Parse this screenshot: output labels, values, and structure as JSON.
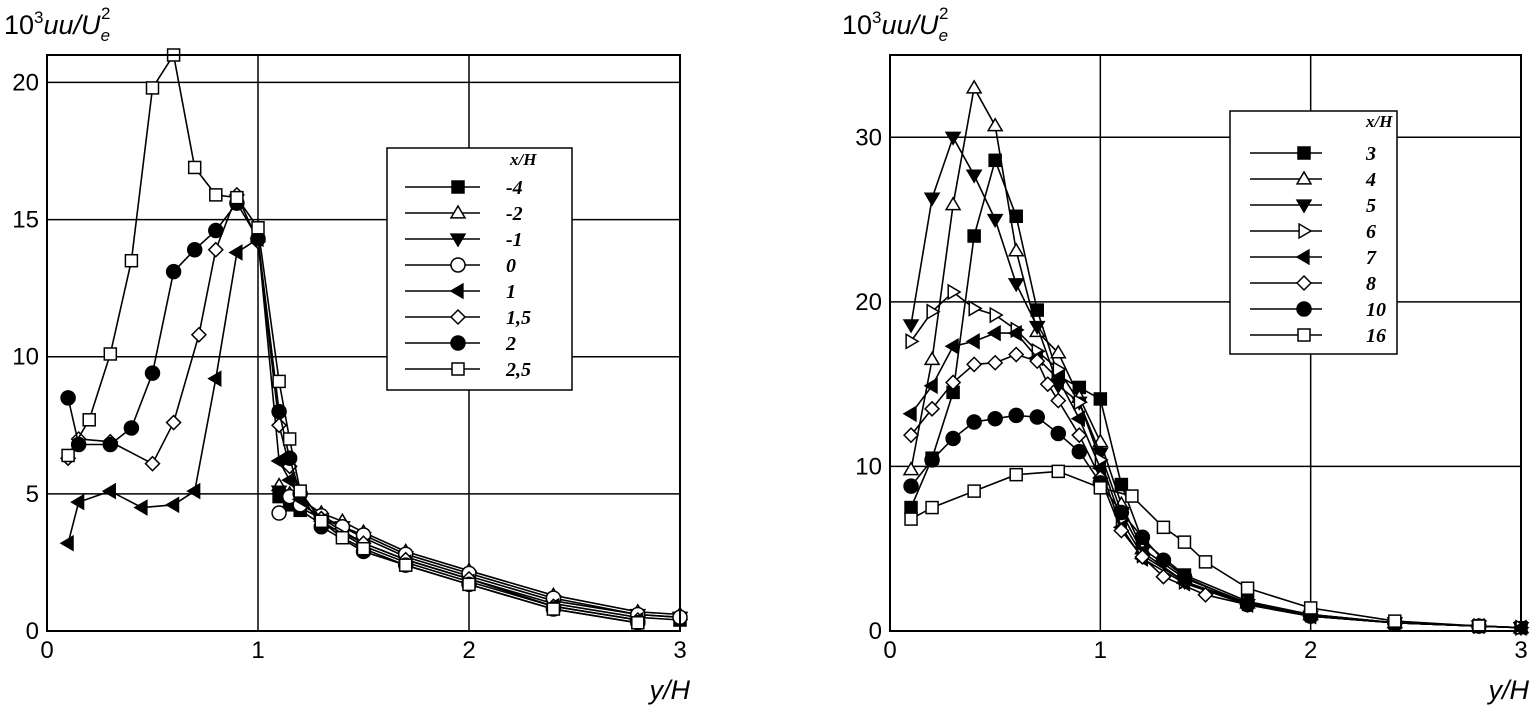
{
  "chart_data": [
    {
      "type": "line",
      "ylabel_text": "10",
      "ylabel_exp": "3",
      "ylabel_main": "uu/U",
      "ylabel_sub": "e",
      "ylabel_sup": "2",
      "xlabel": "y/H",
      "xlim": [
        0,
        3
      ],
      "ylim": [
        0,
        21
      ],
      "xticks": [
        "0",
        "1",
        "2",
        "3"
      ],
      "yticks": [
        "0",
        "5",
        "10",
        "15",
        "20"
      ],
      "ytick_values": [
        0,
        5,
        10,
        15,
        20
      ],
      "grid": true,
      "legend_title": "x/H",
      "legend_position": "center-right",
      "series": [
        {
          "name": "-4",
          "marker": "square-filled",
          "x": [
            1.1,
            1.15,
            1.2,
            1.3,
            1.4,
            1.5,
            1.7,
            2.0,
            2.4,
            2.8,
            3.0
          ],
          "y": [
            4.9,
            4.6,
            4.4,
            3.9,
            3.6,
            3.2,
            2.6,
            1.9,
            1.0,
            0.5,
            0.4
          ]
        },
        {
          "name": "-2",
          "marker": "triangle-up-open",
          "x": [
            1.1,
            1.15,
            1.2,
            1.3,
            1.4,
            1.5,
            1.7,
            2.0,
            2.4,
            2.8,
            3.0
          ],
          "y": [
            5.3,
            5.0,
            4.8,
            4.3,
            4.0,
            3.6,
            2.9,
            2.2,
            1.3,
            0.7,
            0.6
          ]
        },
        {
          "name": "-1",
          "marker": "triangle-down-filled",
          "x": [
            1.1,
            1.15,
            1.2,
            1.3,
            1.4,
            1.5,
            1.7,
            2.0,
            2.4,
            2.8,
            3.0
          ],
          "y": [
            5.1,
            4.8,
            4.5,
            4.1,
            3.8,
            3.4,
            2.7,
            2.0,
            1.1,
            0.6,
            0.5
          ]
        },
        {
          "name": "0",
          "marker": "circle-open",
          "x": [
            1.1,
            1.15,
            1.2,
            1.3,
            1.4,
            1.5,
            1.7,
            2.0,
            2.4,
            2.8,
            3.0
          ],
          "y": [
            4.3,
            4.9,
            4.6,
            4.2,
            3.8,
            3.5,
            2.8,
            2.1,
            1.2,
            0.6,
            0.5
          ]
        },
        {
          "name": "1",
          "marker": "triangle-left-filled",
          "x": [
            0.1,
            0.15,
            0.3,
            0.45,
            0.6,
            0.7,
            0.8,
            0.9,
            1.0,
            1.1,
            1.15,
            1.2,
            1.3,
            1.5,
            1.7,
            2.0,
            2.4,
            2.8
          ],
          "y": [
            3.2,
            4.7,
            5.1,
            4.5,
            4.6,
            5.1,
            9.2,
            13.8,
            14.3,
            6.2,
            5.5,
            4.8,
            4.0,
            3.1,
            2.5,
            1.8,
            0.9,
            0.4
          ]
        },
        {
          "name": "1,5",
          "marker": "diamond-open",
          "x": [
            0.1,
            0.15,
            0.3,
            0.5,
            0.6,
            0.72,
            0.8,
            0.9,
            1.0,
            1.1,
            1.15,
            1.2,
            1.3,
            1.5,
            1.7,
            2.0,
            2.4,
            2.8
          ],
          "y": [
            6.3,
            7.0,
            6.9,
            6.1,
            7.6,
            10.8,
            13.9,
            15.9,
            14.2,
            7.5,
            6.0,
            5.0,
            4.1,
            3.2,
            2.6,
            1.9,
            0.9,
            0.4
          ]
        },
        {
          "name": "2",
          "marker": "circle-filled",
          "x": [
            0.1,
            0.15,
            0.3,
            0.4,
            0.5,
            0.6,
            0.7,
            0.8,
            0.9,
            1.0,
            1.1,
            1.15,
            1.2,
            1.3,
            1.5,
            1.7,
            2.0,
            2.4,
            2.8
          ],
          "y": [
            8.5,
            6.8,
            6.8,
            7.4,
            9.4,
            13.1,
            13.9,
            14.6,
            15.6,
            14.3,
            8.0,
            6.3,
            5.0,
            3.8,
            2.9,
            2.4,
            1.7,
            0.8,
            0.3
          ]
        },
        {
          "name": "2,5",
          "marker": "square-open",
          "x": [
            0.1,
            0.2,
            0.3,
            0.4,
            0.5,
            0.6,
            0.7,
            0.8,
            0.9,
            1.0,
            1.1,
            1.15,
            1.2,
            1.3,
            1.4,
            1.5,
            1.7,
            2.0,
            2.4,
            2.8
          ],
          "y": [
            6.4,
            7.7,
            10.1,
            13.5,
            19.8,
            21.0,
            16.9,
            15.9,
            15.8,
            14.7,
            9.1,
            7.0,
            5.1,
            4.0,
            3.4,
            3.0,
            2.4,
            1.7,
            0.8,
            0.3
          ]
        }
      ]
    },
    {
      "type": "line",
      "ylabel_text": "10",
      "ylabel_exp": "3",
      "ylabel_main": "uu/U",
      "ylabel_sub": "e",
      "ylabel_sup": "2",
      "xlabel": "y/H",
      "xlim": [
        0,
        3
      ],
      "ylim": [
        0,
        35
      ],
      "xticks": [
        "0",
        "1",
        "2",
        "3"
      ],
      "yticks": [
        "0",
        "10",
        "20",
        "30"
      ],
      "ytick_values": [
        0,
        10,
        20,
        30
      ],
      "grid": true,
      "legend_title": "x/H",
      "legend_position": "top-right",
      "series": [
        {
          "name": "3",
          "marker": "square-filled",
          "x": [
            0.1,
            0.2,
            0.3,
            0.4,
            0.5,
            0.6,
            0.7,
            0.8,
            0.9,
            1.0,
            1.1,
            1.2,
            1.4,
            1.7,
            2.0,
            2.4,
            2.8,
            3.0
          ],
          "y": [
            7.5,
            10.5,
            14.5,
            24.0,
            28.6,
            25.2,
            19.5,
            15.5,
            14.8,
            14.1,
            8.9,
            5.5,
            3.4,
            1.8,
            1.0,
            0.5,
            0.3,
            0.2
          ]
        },
        {
          "name": "4",
          "marker": "triangle-up-open",
          "x": [
            0.1,
            0.2,
            0.3,
            0.4,
            0.5,
            0.6,
            0.7,
            0.8,
            0.9,
            1.0,
            1.1,
            1.2,
            1.4,
            1.7,
            2.0,
            2.4,
            2.8,
            3.0
          ],
          "y": [
            9.8,
            16.5,
            25.9,
            33.0,
            30.7,
            23.1,
            18.2,
            16.9,
            14.2,
            11.5,
            7.7,
            5.0,
            3.2,
            1.7,
            1.0,
            0.5,
            0.3,
            0.2
          ]
        },
        {
          "name": "5",
          "marker": "triangle-down-filled",
          "x": [
            0.1,
            0.2,
            0.3,
            0.4,
            0.5,
            0.6,
            0.7,
            0.8,
            0.9,
            1.0,
            1.1,
            1.2,
            1.4,
            1.7,
            2.0,
            2.4,
            2.8,
            3.0
          ],
          "y": [
            18.6,
            26.3,
            30.0,
            27.7,
            25.0,
            21.1,
            18.5,
            14.9,
            13.9,
            10.8,
            7.2,
            4.8,
            3.0,
            1.6,
            0.9,
            0.5,
            0.3,
            0.2
          ]
        },
        {
          "name": "6",
          "marker": "triangle-right-open",
          "x": [
            0.1,
            0.2,
            0.3,
            0.4,
            0.5,
            0.6,
            0.7,
            0.8,
            0.9,
            1.0,
            1.1,
            1.2,
            1.4,
            1.7,
            2.0,
            2.4,
            2.8,
            3.0
          ],
          "y": [
            17.6,
            19.4,
            20.6,
            19.6,
            19.2,
            18.3,
            17.0,
            15.9,
            13.9,
            10.4,
            6.7,
            4.6,
            3.0,
            1.7,
            1.0,
            0.5,
            0.3,
            0.2
          ]
        },
        {
          "name": "7",
          "marker": "triangle-left-filled",
          "x": [
            0.1,
            0.2,
            0.3,
            0.4,
            0.5,
            0.6,
            0.7,
            0.8,
            0.9,
            1.0,
            1.1,
            1.2,
            1.4,
            1.7,
            2.0,
            2.4,
            2.8,
            3.0
          ],
          "y": [
            13.2,
            14.9,
            17.3,
            17.6,
            18.1,
            18.1,
            16.6,
            15.3,
            12.9,
            9.9,
            6.3,
            4.4,
            2.9,
            1.6,
            0.9,
            0.5,
            0.3,
            0.2
          ]
        },
        {
          "name": "8",
          "marker": "diamond-open",
          "x": [
            0.1,
            0.2,
            0.3,
            0.4,
            0.5,
            0.6,
            0.7,
            0.75,
            0.8,
            0.9,
            1.0,
            1.1,
            1.2,
            1.3,
            1.5,
            1.7,
            2.0,
            2.4,
            2.8
          ],
          "y": [
            11.9,
            13.5,
            15.1,
            16.2,
            16.3,
            16.8,
            16.4,
            15.0,
            14.0,
            11.9,
            9.3,
            6.1,
            4.5,
            3.3,
            2.2,
            1.6,
            0.9,
            0.5,
            0.3
          ]
        },
        {
          "name": "10",
          "marker": "circle-filled",
          "x": [
            0.1,
            0.2,
            0.3,
            0.4,
            0.5,
            0.6,
            0.7,
            0.8,
            0.9,
            1.0,
            1.1,
            1.2,
            1.3,
            1.4,
            1.7,
            2.0,
            2.4,
            2.8
          ],
          "y": [
            8.8,
            10.4,
            11.7,
            12.7,
            12.9,
            13.1,
            13.0,
            12.0,
            10.9,
            9.0,
            7.2,
            5.7,
            4.3,
            3.3,
            1.6,
            0.9,
            0.5,
            0.3
          ]
        },
        {
          "name": "16",
          "marker": "square-open",
          "x": [
            0.1,
            0.2,
            0.4,
            0.6,
            0.8,
            1.0,
            1.15,
            1.3,
            1.4,
            1.5,
            1.7,
            2.0,
            2.4,
            2.8
          ],
          "y": [
            6.8,
            7.5,
            8.5,
            9.5,
            9.7,
            8.7,
            8.2,
            6.3,
            5.4,
            4.2,
            2.6,
            1.4,
            0.6,
            0.3
          ]
        }
      ]
    }
  ]
}
